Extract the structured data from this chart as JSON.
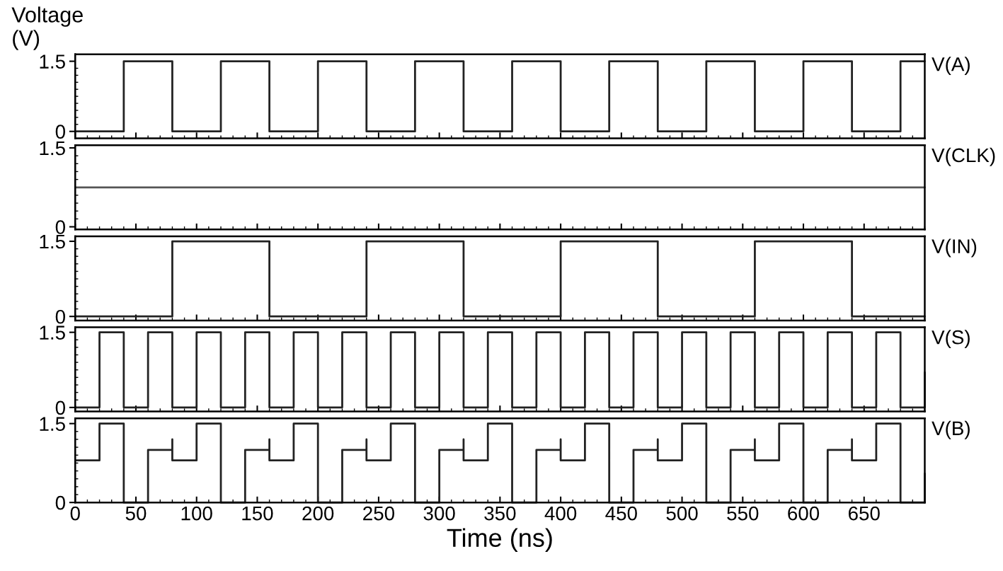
{
  "chart_data": [
    {
      "type": "step",
      "ylabel": "Voltage\n(V)",
      "xlim": [
        0,
        700
      ],
      "xticks": [
        0,
        50,
        100,
        150,
        200,
        250,
        300,
        350,
        400,
        450,
        500,
        550,
        600,
        650
      ],
      "ylim": [
        -0.15,
        1.65
      ],
      "yticks": [
        0,
        1.5
      ],
      "tick_labels": "y",
      "legend": false,
      "grid": false,
      "series": [
        {
          "name": "V(A)",
          "color": "#222222",
          "x": [
            0,
            40,
            80,
            120,
            160,
            200,
            240,
            280,
            320,
            360,
            400,
            440,
            480,
            520,
            560,
            600,
            640,
            680,
            700
          ],
          "values": [
            0,
            1.5,
            0,
            1.5,
            0,
            1.5,
            0,
            1.5,
            0,
            1.5,
            0,
            1.5,
            0,
            1.5,
            0,
            1.5,
            0,
            1.5,
            1.5
          ]
        }
      ]
    },
    {
      "type": "step",
      "xlim": [
        0,
        700
      ],
      "xticks": [
        0,
        50,
        100,
        150,
        200,
        250,
        300,
        350,
        400,
        450,
        500,
        550,
        600,
        650
      ],
      "ylim": [
        -0.05,
        1.55
      ],
      "yticks": [
        0,
        1.5
      ],
      "tick_labels": "y",
      "legend": false,
      "grid": false,
      "series": [
        {
          "name": "V(CLK)",
          "color": "#555555",
          "x": [
            0,
            700
          ],
          "values": [
            0.75,
            0.75
          ]
        }
      ]
    },
    {
      "type": "step",
      "xlim": [
        0,
        700
      ],
      "xticks": [
        0,
        50,
        100,
        150,
        200,
        250,
        300,
        350,
        400,
        450,
        500,
        550,
        600,
        650
      ],
      "ylim": [
        -0.08,
        1.6
      ],
      "yticks": [
        0,
        1.5
      ],
      "tick_labels": "y",
      "legend": false,
      "grid": false,
      "series": [
        {
          "name": "V(IN)",
          "color": "#222222",
          "x": [
            0,
            80,
            160,
            240,
            320,
            400,
            480,
            560,
            640,
            700
          ],
          "values": [
            0,
            1.5,
            0,
            1.5,
            0,
            1.5,
            0,
            1.5,
            0,
            0
          ]
        }
      ]
    },
    {
      "type": "step",
      "xlim": [
        0,
        700
      ],
      "xticks": [
        0,
        50,
        100,
        150,
        200,
        250,
        300,
        350,
        400,
        450,
        500,
        550,
        600,
        650
      ],
      "ylim": [
        -0.08,
        1.6
      ],
      "yticks": [
        0,
        1.5
      ],
      "tick_labels": "y",
      "legend": false,
      "grid": false,
      "series": [
        {
          "name": "V(S)",
          "color": "#222222",
          "x": [
            0,
            20,
            40,
            60,
            80,
            100,
            120,
            140,
            160,
            180,
            200,
            220,
            240,
            260,
            280,
            300,
            320,
            340,
            360,
            380,
            400,
            420,
            440,
            460,
            480,
            500,
            520,
            540,
            560,
            580,
            600,
            620,
            640,
            660,
            680,
            700
          ],
          "values": [
            0,
            1.5,
            0,
            1.5,
            0,
            1.5,
            0,
            1.5,
            0,
            1.5,
            0,
            1.5,
            0,
            1.5,
            0,
            1.5,
            0,
            1.5,
            0,
            1.5,
            0,
            1.5,
            0,
            1.5,
            0,
            1.5,
            0,
            1.5,
            0,
            1.5,
            0,
            1.5,
            0,
            1.5,
            0,
            0.7
          ]
        }
      ]
    },
    {
      "type": "step",
      "xlabel": "Time (ns)",
      "xlim": [
        0,
        700
      ],
      "xticks": [
        0,
        50,
        100,
        150,
        200,
        250,
        300,
        350,
        400,
        450,
        500,
        550,
        600,
        650
      ],
      "ylim": [
        0,
        1.6
      ],
      "yticks": [
        0,
        1.5
      ],
      "legend": false,
      "grid": false,
      "series": [
        {
          "name": "V(B)",
          "color": "#222222",
          "x": [
            0,
            20,
            40,
            60,
            80,
            80,
            100,
            120,
            140,
            160,
            160,
            180,
            200,
            220,
            240,
            240,
            260,
            280,
            300,
            320,
            320,
            340,
            360,
            380,
            400,
            400,
            420,
            440,
            460,
            480,
            480,
            500,
            520,
            540,
            560,
            560,
            580,
            600,
            620,
            640,
            640,
            660,
            680,
            700
          ],
          "values": [
            0.8,
            1.5,
            0,
            1.0,
            1.2,
            0.8,
            1.5,
            0,
            1.0,
            1.2,
            0.8,
            1.5,
            0,
            1.0,
            1.2,
            0.8,
            1.5,
            0,
            1.0,
            1.2,
            0.8,
            1.5,
            0,
            1.0,
            1.2,
            0.8,
            1.5,
            0,
            1.0,
            1.2,
            0.8,
            1.5,
            0,
            1.0,
            1.2,
            0.8,
            1.5,
            0,
            1.0,
            1.2,
            0.8,
            1.5,
            0,
            0.55
          ]
        }
      ]
    }
  ]
}
